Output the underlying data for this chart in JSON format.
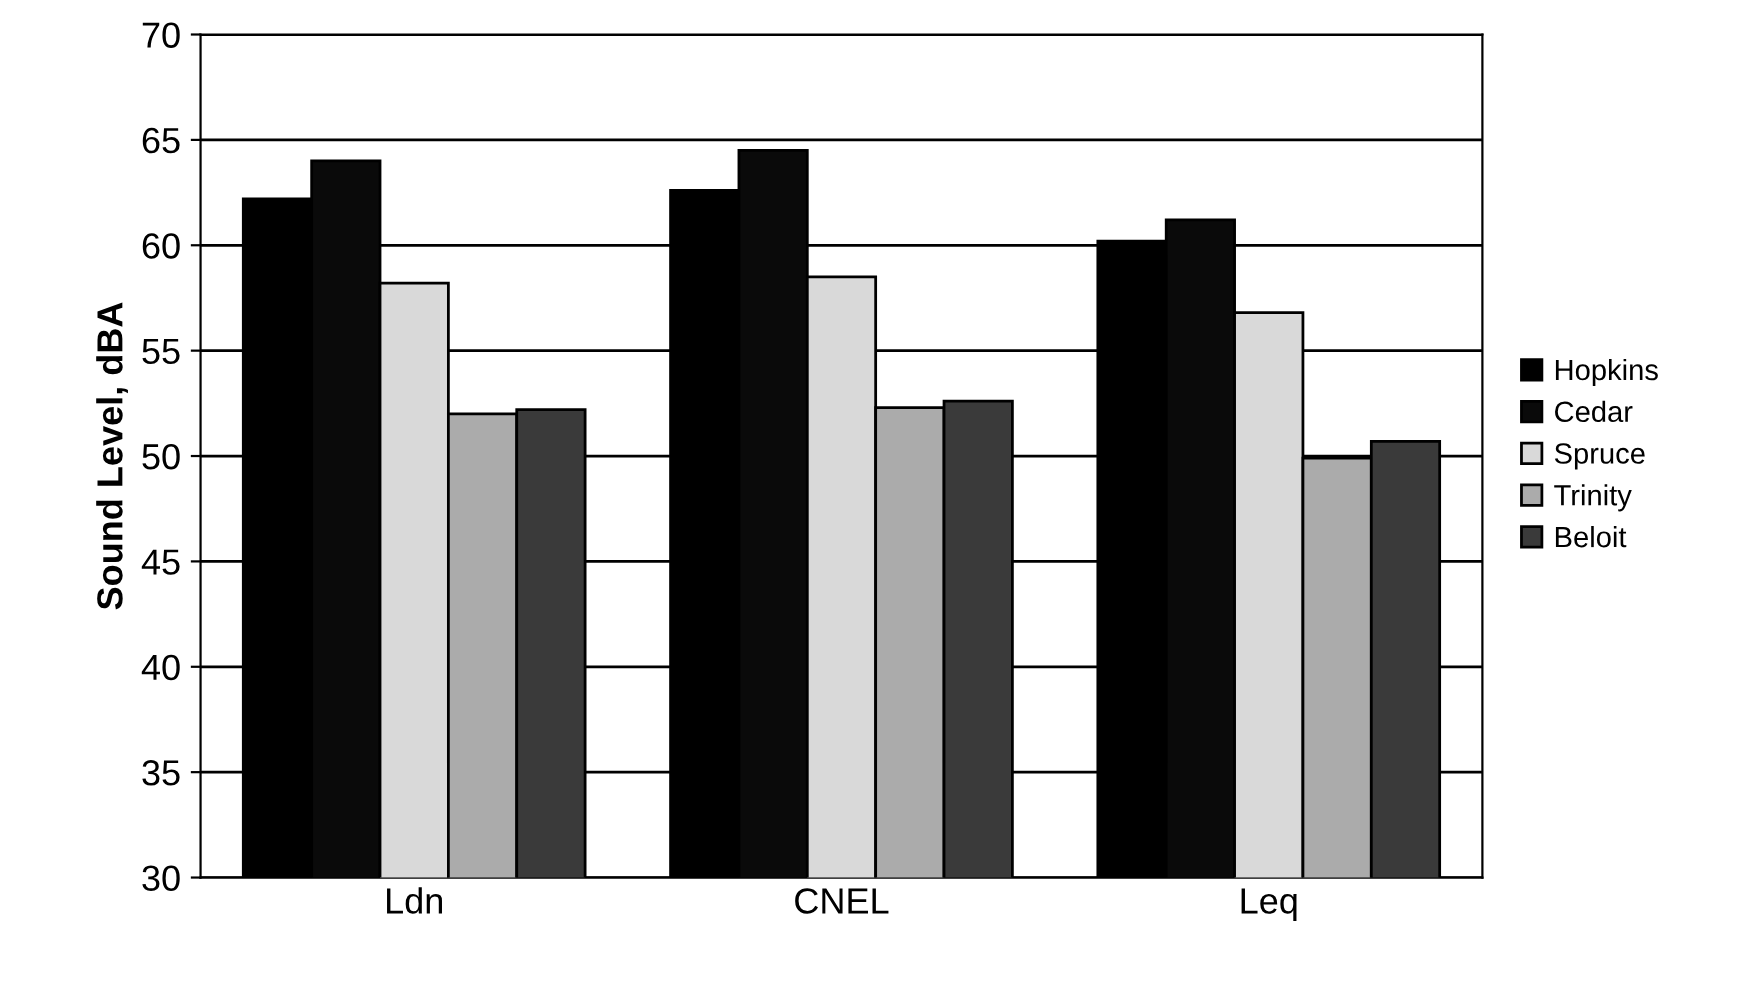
{
  "chart_data": {
    "type": "bar",
    "ylabel": "Sound Level, dBA",
    "categories": [
      "Ldn",
      "CNEL",
      "Leq"
    ],
    "series": [
      {
        "name": "Hopkins",
        "color": "#000000",
        "values": [
          62.2,
          62.6,
          60.2
        ]
      },
      {
        "name": "Cedar",
        "color": "#0a0a0a",
        "values": [
          64.0,
          64.5,
          61.2
        ]
      },
      {
        "name": "Spruce",
        "color": "#d9d9d9",
        "values": [
          58.2,
          58.5,
          56.8
        ]
      },
      {
        "name": "Trinity",
        "color": "#ababab",
        "values": [
          52.0,
          52.3,
          49.9
        ]
      },
      {
        "name": "Beloit",
        "color": "#3a3a3a",
        "values": [
          52.2,
          52.6,
          50.7
        ]
      }
    ],
    "ylim": [
      30,
      70
    ],
    "yticks": [
      30,
      35,
      40,
      45,
      50,
      55,
      60,
      65,
      70
    ],
    "grid": "y",
    "legend": "right"
  }
}
